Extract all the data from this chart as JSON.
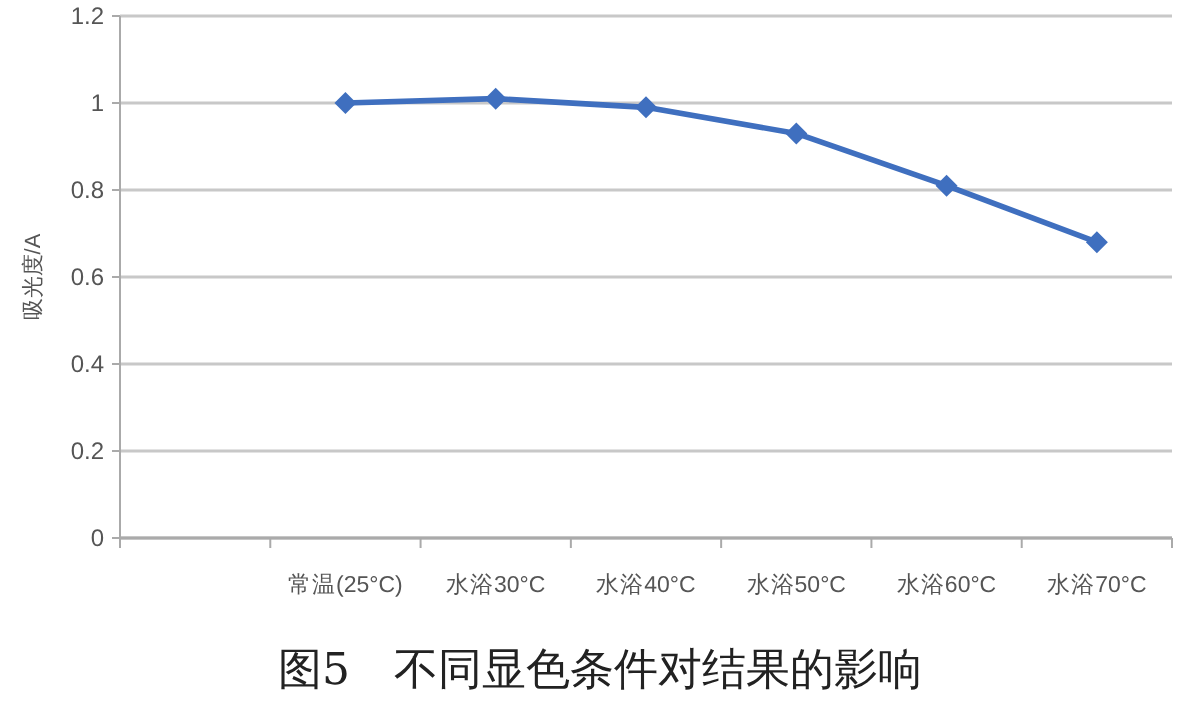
{
  "chart_data": {
    "type": "line",
    "title": "图5　不同显色条件对结果的影响",
    "ylabel": "吸光度/A",
    "categories": [
      null,
      "常温(25°C)",
      "水浴30°C",
      "水浴40°C",
      "水浴50°C",
      "水浴60°C",
      "水浴70°C"
    ],
    "series": [
      {
        "color": "#3f6fbf",
        "values": [
          null,
          1.0,
          1.01,
          0.99,
          0.93,
          0.81,
          0.68
        ]
      }
    ],
    "ylim": [
      0,
      1.2
    ],
    "yticks": [
      0,
      0.2,
      0.4,
      0.6,
      0.8,
      1,
      1.2
    ],
    "grid": "y",
    "marker": "diamond",
    "line_style": "solid"
  }
}
